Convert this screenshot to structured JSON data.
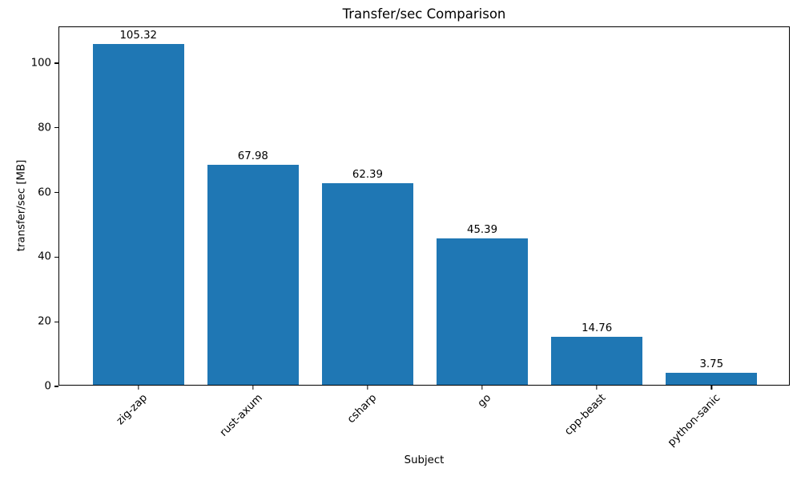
{
  "chart_data": {
    "type": "bar",
    "title": "Transfer/sec Comparison",
    "xlabel": "Subject",
    "ylabel": "transfer/sec [MB]",
    "categories": [
      "zig-zap",
      "rust-axum",
      "csharp",
      "go",
      "cpp-beast",
      "python-sanic"
    ],
    "values": [
      105.32,
      67.98,
      62.39,
      45.39,
      14.76,
      3.75
    ],
    "value_labels": [
      "105.32",
      "67.98",
      "62.39",
      "45.39",
      "14.76",
      "3.75"
    ],
    "ylim": [
      0,
      111.1
    ],
    "yticks": [
      0,
      20,
      40,
      60,
      80,
      100
    ],
    "xlim": [
      -0.69,
      5.69
    ],
    "bar_width_units": 0.8,
    "grid": false,
    "legend": null,
    "colors": {
      "bar": "#1f77b4",
      "text": "#000000",
      "spine": "#000000",
      "background": "#ffffff"
    }
  }
}
